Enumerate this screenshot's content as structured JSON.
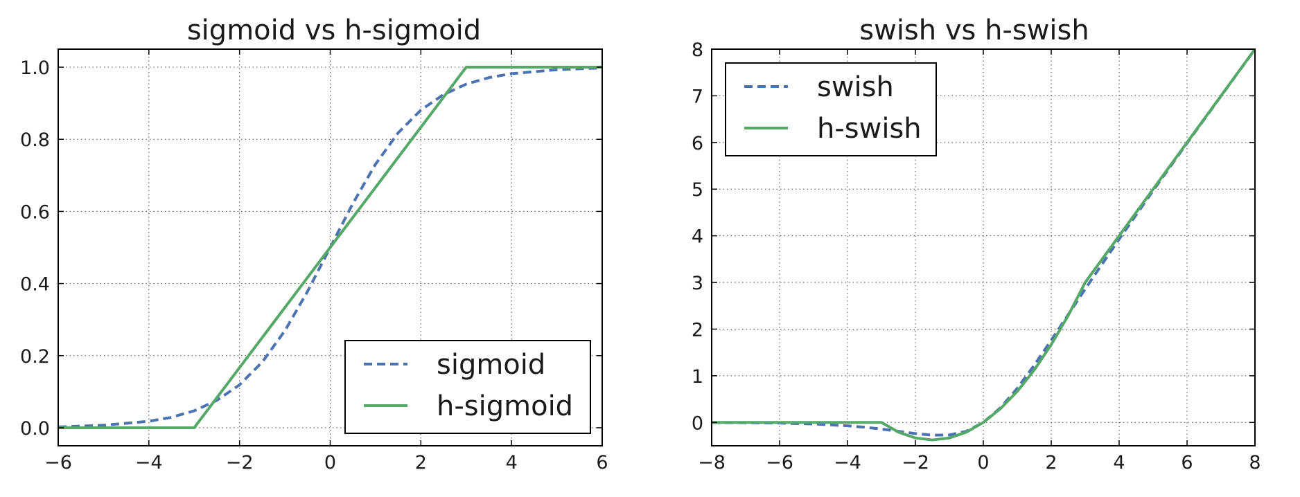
{
  "colors": {
    "dashed_series": "#4c72b0",
    "solid_series": "#55a868"
  },
  "chart_data": [
    {
      "id": "sigmoid",
      "type": "line",
      "title": "sigmoid vs h-sigmoid",
      "xlabel": "",
      "ylabel": "",
      "xlim": [
        -6,
        6
      ],
      "ylim": [
        -0.05,
        1.05
      ],
      "xticks": [
        -6,
        -4,
        -2,
        0,
        2,
        4,
        6
      ],
      "xtick_labels": [
        "−6",
        "−4",
        "−2",
        "0",
        "2",
        "4",
        "6"
      ],
      "yticks": [
        0.0,
        0.2,
        0.4,
        0.6,
        0.8,
        1.0
      ],
      "ytick_labels": [
        "0.0",
        "0.2",
        "0.4",
        "0.6",
        "0.8",
        "1.0"
      ],
      "grid": true,
      "legend_position": "lower-right",
      "series": [
        {
          "name": "sigmoid",
          "style": "dashed",
          "color": "#4c72b0",
          "x": [
            -6,
            -5,
            -4,
            -3.5,
            -3,
            -2.5,
            -2,
            -1.5,
            -1,
            -0.5,
            0,
            0.5,
            1,
            1.5,
            2,
            2.5,
            3,
            3.5,
            4,
            5,
            6
          ],
          "y": [
            0.002,
            0.007,
            0.018,
            0.029,
            0.047,
            0.076,
            0.119,
            0.182,
            0.269,
            0.378,
            0.5,
            0.622,
            0.731,
            0.818,
            0.881,
            0.924,
            0.953,
            0.971,
            0.982,
            0.993,
            0.998
          ]
        },
        {
          "name": "h-sigmoid",
          "style": "solid",
          "color": "#55a868",
          "x": [
            -6,
            -3,
            3,
            6
          ],
          "y": [
            0.0,
            0.0,
            1.0,
            1.0
          ]
        }
      ]
    },
    {
      "id": "swish",
      "type": "line",
      "title": "swish vs h-swish",
      "xlabel": "",
      "ylabel": "",
      "xlim": [
        -8,
        8
      ],
      "ylim": [
        -0.5,
        8
      ],
      "xticks": [
        -8,
        -6,
        -4,
        -2,
        0,
        2,
        4,
        6,
        8
      ],
      "xtick_labels": [
        "−8",
        "−6",
        "−4",
        "−2",
        "0",
        "2",
        "4",
        "6",
        "8"
      ],
      "yticks": [
        0,
        1,
        2,
        3,
        4,
        5,
        6,
        7,
        8
      ],
      "ytick_labels": [
        "0",
        "1",
        "2",
        "3",
        "4",
        "5",
        "6",
        "7",
        "8"
      ],
      "grid": true,
      "legend_position": "upper-left",
      "series": [
        {
          "name": "swish",
          "style": "dashed",
          "color": "#4c72b0",
          "x": [
            -8,
            -7,
            -6,
            -5,
            -4,
            -3.5,
            -3,
            -2.5,
            -2,
            -1.5,
            -1,
            -0.5,
            0,
            0.5,
            1,
            1.5,
            2,
            2.5,
            3,
            3.5,
            4,
            5,
            6,
            7,
            8
          ],
          "y": [
            -0.003,
            -0.006,
            -0.015,
            -0.033,
            -0.072,
            -0.102,
            -0.142,
            -0.19,
            -0.238,
            -0.273,
            -0.269,
            -0.189,
            0.0,
            0.311,
            0.731,
            1.227,
            1.762,
            2.311,
            2.858,
            3.396,
            3.928,
            4.967,
            5.985,
            6.994,
            7.997
          ]
        },
        {
          "name": "h-swish",
          "style": "solid",
          "color": "#55a868",
          "x": [
            -8,
            -3,
            -2.5,
            -2,
            -1.5,
            -1,
            -0.5,
            0,
            0.5,
            1,
            1.5,
            2,
            2.5,
            3,
            4,
            5,
            6,
            7,
            8
          ],
          "y": [
            0.0,
            0.0,
            -0.208,
            -0.333,
            -0.375,
            -0.333,
            -0.208,
            0.0,
            0.292,
            0.667,
            1.125,
            1.667,
            2.292,
            3.0,
            4.0,
            5.0,
            6.0,
            7.0,
            8.0
          ]
        }
      ]
    }
  ]
}
